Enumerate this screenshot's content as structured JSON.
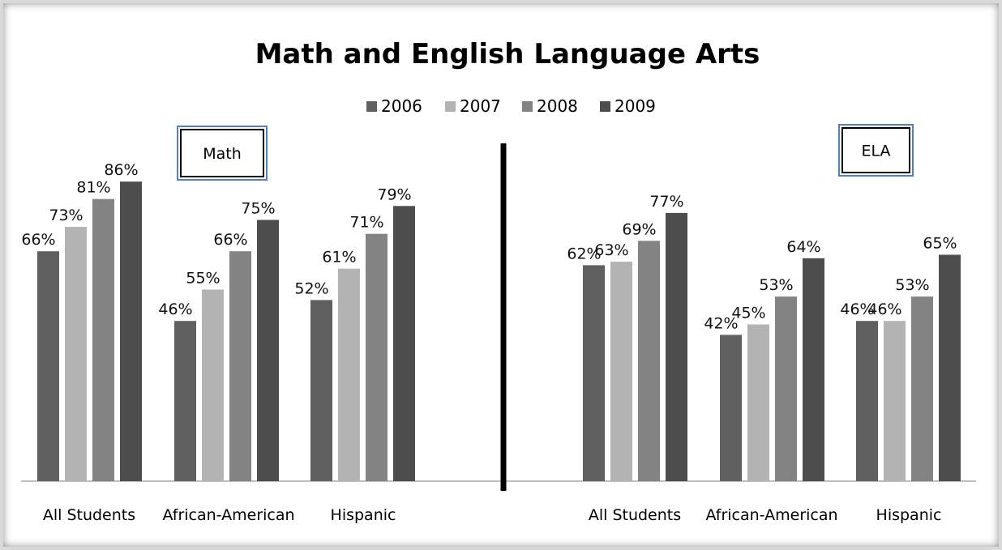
{
  "chart_data": {
    "type": "bar",
    "title": "Math and English Language Arts",
    "xlabel": "",
    "ylabel": "",
    "ylim": [
      0,
      100
    ],
    "grid": false,
    "legend_placement": "top-center",
    "legend": [
      "2006",
      "2007",
      "2008",
      "2009"
    ],
    "series_colors": [
      "#606060",
      "#b3b3b3",
      "#838383",
      "#4d4d4d"
    ],
    "axis_color": "#7f7f7f",
    "divider_color": "#000000",
    "panel_box_border_color": "#4f81bd",
    "panels": [
      {
        "label": "Math",
        "categories": [
          "All Students",
          "African-American",
          "Hispanic"
        ],
        "series": [
          {
            "name": "2006",
            "values": [
              66,
              46,
              52
            ]
          },
          {
            "name": "2007",
            "values": [
              73,
              55,
              61
            ]
          },
          {
            "name": "2008",
            "values": [
              81,
              66,
              71
            ]
          },
          {
            "name": "2009",
            "values": [
              86,
              75,
              79
            ]
          }
        ]
      },
      {
        "label": "ELA",
        "categories": [
          "All Students",
          "African-American",
          "Hispanic"
        ],
        "series": [
          {
            "name": "2006",
            "values": [
              62,
              42,
              46
            ]
          },
          {
            "name": "2007",
            "values": [
              63,
              45,
              46
            ]
          },
          {
            "name": "2008",
            "values": [
              69,
              53,
              53
            ]
          },
          {
            "name": "2009",
            "values": [
              77,
              64,
              65
            ]
          }
        ]
      }
    ],
    "value_label_suffix": "%"
  }
}
